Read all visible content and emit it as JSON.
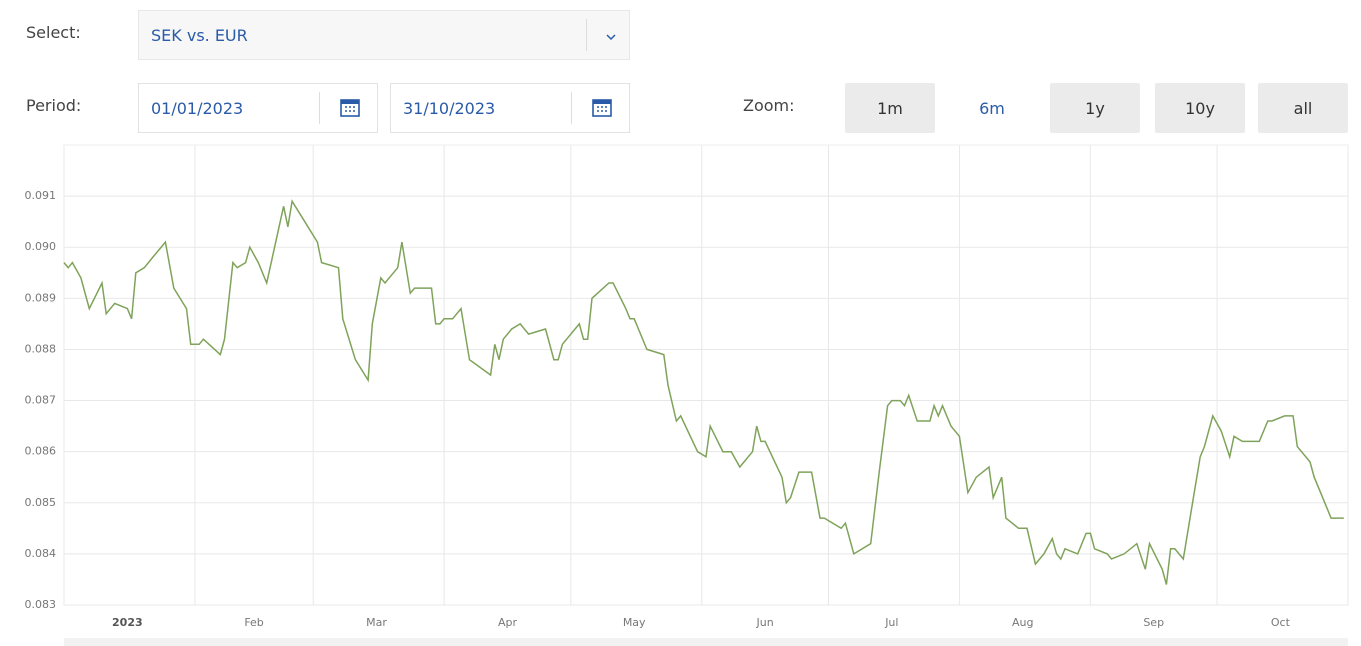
{
  "controls": {
    "select_label": "Select:",
    "select_value": "SEK vs. EUR",
    "period_label": "Period:",
    "date_from": "01/01/2023",
    "date_to": "31/10/2023",
    "zoom_label": "Zoom:",
    "zoom_buttons": [
      "1m",
      "6m",
      "1y",
      "10y",
      "all"
    ],
    "zoom_selected": 1
  },
  "chart_data": {
    "type": "line",
    "color": "#7fa35a",
    "grid": true,
    "xlim": [
      0,
      304
    ],
    "ylim": [
      0.083,
      0.092
    ],
    "yticks": [
      0.083,
      0.084,
      0.085,
      0.086,
      0.087,
      0.088,
      0.089,
      {
        "value": 0.09,
        "label": "0.090"
      },
      0.091
    ],
    "xticks": [
      {
        "value": 15,
        "label": "2023"
      },
      {
        "value": 45,
        "label": "Feb"
      },
      {
        "value": 74,
        "label": "Mar"
      },
      {
        "value": 105,
        "label": "Apr"
      },
      {
        "value": 135,
        "label": "May"
      },
      {
        "value": 166,
        "label": "Jun"
      },
      {
        "value": 196,
        "label": "Jul"
      },
      {
        "value": 227,
        "label": "Aug"
      },
      {
        "value": 258,
        "label": "Sep"
      },
      {
        "value": 288,
        "label": "Oct"
      }
    ],
    "xgrid": [
      0,
      31,
      59,
      90,
      120,
      151,
      181,
      212,
      243,
      273,
      304
    ],
    "x": [
      0,
      1,
      2,
      4,
      6,
      9,
      10,
      12,
      15,
      16,
      17,
      19,
      21,
      24,
      26,
      29,
      30,
      32,
      33,
      37,
      38,
      40,
      41,
      43,
      44,
      46,
      48,
      52,
      53,
      54,
      57,
      60,
      61,
      65,
      66,
      69,
      72,
      73,
      75,
      76,
      79,
      80,
      82,
      83,
      87,
      88,
      89,
      90,
      92,
      94,
      96,
      101,
      102,
      103,
      104,
      106,
      108,
      110,
      114,
      116,
      117,
      118,
      122,
      123,
      124,
      125,
      129,
      130,
      133,
      134,
      135,
      138,
      142,
      143,
      145,
      146,
      150,
      152,
      153,
      156,
      158,
      160,
      163,
      164,
      165,
      166,
      170,
      171,
      172,
      174,
      177,
      179,
      180,
      184,
      185,
      187,
      191,
      193,
      195,
      196,
      198,
      199,
      200,
      202,
      205,
      206,
      207,
      208,
      210,
      212,
      214,
      216,
      219,
      220,
      222,
      223,
      226,
      228,
      230,
      232,
      234,
      235,
      236,
      237,
      240,
      242,
      243,
      244,
      247,
      248,
      251,
      254,
      256,
      257,
      260,
      261,
      262,
      263,
      265,
      267,
      269,
      270,
      272,
      274,
      276,
      277,
      279,
      283,
      285,
      286,
      289,
      291,
      292,
      295,
      296,
      298,
      300,
      303
    ],
    "values": [
      0.0897,
      0.0896,
      0.0897,
      0.0894,
      0.0888,
      0.0893,
      0.0887,
      0.0889,
      0.0888,
      0.0886,
      0.0895,
      0.0896,
      0.0898,
      0.0901,
      0.0892,
      0.0888,
      0.0881,
      0.0881,
      0.0882,
      0.0879,
      0.0882,
      0.0897,
      0.0896,
      0.0897,
      0.09,
      0.0897,
      0.0893,
      0.0908,
      0.0904,
      0.0909,
      0.0905,
      0.0901,
      0.0897,
      0.0896,
      0.0886,
      0.0878,
      0.0874,
      0.0885,
      0.0894,
      0.0893,
      0.0896,
      0.0901,
      0.0891,
      0.0892,
      0.0892,
      0.0885,
      0.0885,
      0.0886,
      0.0886,
      0.0888,
      0.0878,
      0.0875,
      0.0881,
      0.0878,
      0.0882,
      0.0884,
      0.0885,
      0.0883,
      0.0884,
      0.0878,
      0.0878,
      0.0881,
      0.0885,
      0.0882,
      0.0882,
      0.089,
      0.0893,
      0.0893,
      0.0888,
      0.0886,
      0.0886,
      0.088,
      0.0879,
      0.0873,
      0.0866,
      0.0867,
      0.086,
      0.0859,
      0.0865,
      0.086,
      0.086,
      0.0857,
      0.086,
      0.0865,
      0.0862,
      0.0862,
      0.0855,
      0.085,
      0.0851,
      0.0856,
      0.0856,
      0.0847,
      0.0847,
      0.0845,
      0.0846,
      0.084,
      0.0842,
      0.0856,
      0.0869,
      0.087,
      0.087,
      0.0869,
      0.0871,
      0.0866,
      0.0866,
      0.0869,
      0.0867,
      0.0869,
      0.0865,
      0.0863,
      0.0852,
      0.0855,
      0.0857,
      0.0851,
      0.0855,
      0.0847,
      0.0845,
      0.0845,
      0.0838,
      0.084,
      0.0843,
      0.084,
      0.0839,
      0.0841,
      0.084,
      0.0844,
      0.0844,
      0.0841,
      0.084,
      0.0839,
      0.084,
      0.0842,
      0.0837,
      0.0842,
      0.0837,
      0.0834,
      0.0841,
      0.0841,
      0.0839,
      0.0849,
      0.0859,
      0.0861,
      0.0867,
      0.0864,
      0.0859,
      0.0863,
      0.0862,
      0.0862,
      0.0866,
      0.0866,
      0.0867,
      0.0867,
      0.0861,
      0.0858,
      0.0855,
      0.0851,
      0.0847,
      0.0847
    ]
  }
}
